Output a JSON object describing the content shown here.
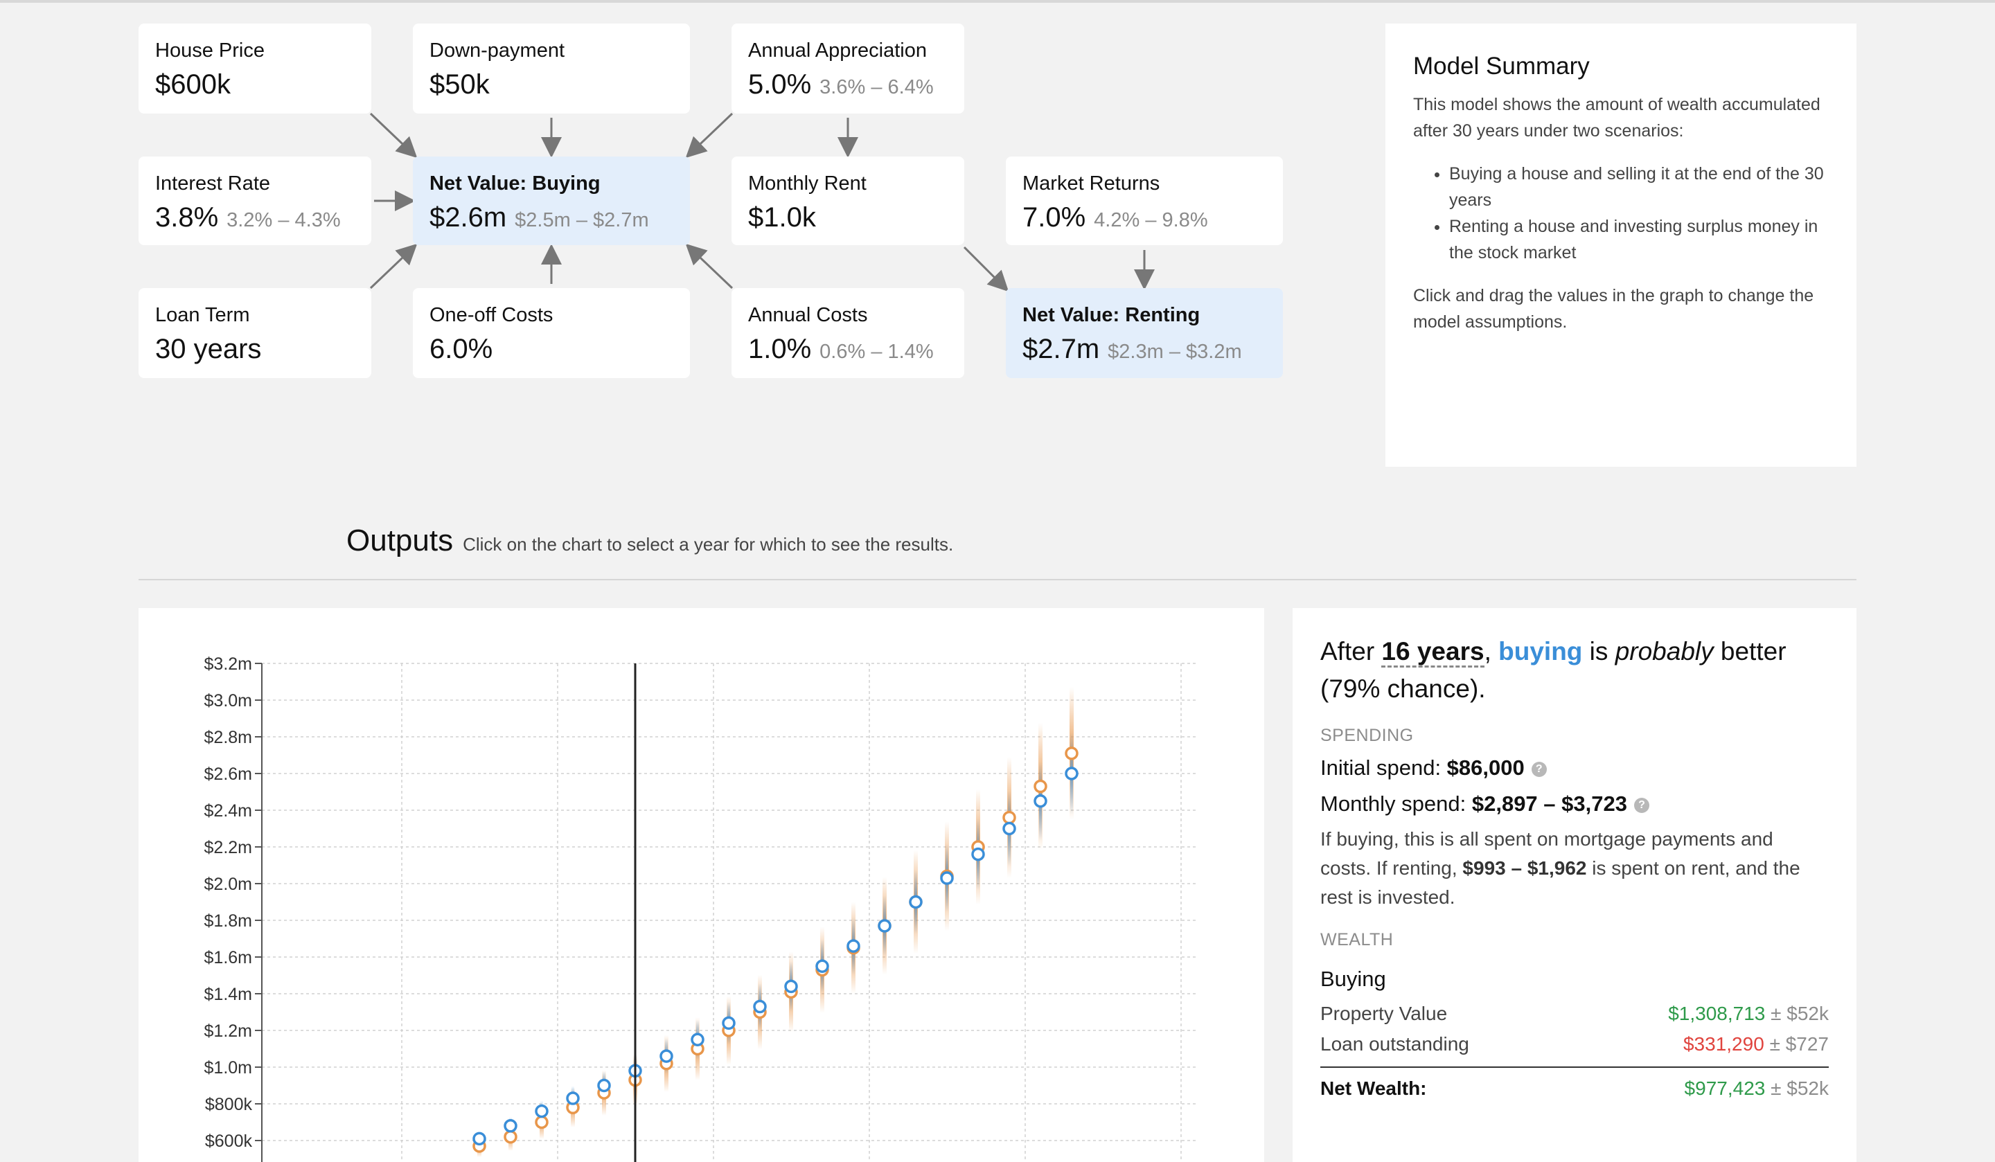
{
  "graph": {
    "house_price": {
      "label": "House Price",
      "value": "$600k",
      "range": ""
    },
    "down_payment": {
      "label": "Down-payment",
      "value": "$50k",
      "range": ""
    },
    "annual_appreciation": {
      "label": "Annual Appreciation",
      "value": "5.0%",
      "range": "3.6% – 6.4%"
    },
    "interest_rate": {
      "label": "Interest Rate",
      "value": "3.8%",
      "range": "3.2% – 4.3%"
    },
    "net_buying": {
      "label": "Net Value: Buying",
      "value": "$2.6m",
      "range": "$2.5m – $2.7m"
    },
    "monthly_rent": {
      "label": "Monthly Rent",
      "value": "$1.0k",
      "range": ""
    },
    "market_returns": {
      "label": "Market Returns",
      "value": "7.0%",
      "range": "4.2% – 9.8%"
    },
    "loan_term": {
      "label": "Loan Term",
      "value": "30 years",
      "range": ""
    },
    "oneoff_costs": {
      "label": "One-off Costs",
      "value": "6.0%",
      "range": ""
    },
    "annual_costs": {
      "label": "Annual Costs",
      "value": "1.0%",
      "range": "0.6% – 1.4%"
    },
    "net_renting": {
      "label": "Net Value: Renting",
      "value": "$2.7m",
      "range": "$2.3m – $3.2m"
    }
  },
  "summary": {
    "title": "Model Summary",
    "intro": "This model shows the amount of wealth accumulated after 30 years under two scenarios:",
    "bullets": [
      "Buying a house and selling it at the end of the 30 years",
      "Renting a house and investing surplus money in the stock market"
    ],
    "outro": "Click and drag the values in the graph to change the model assumptions."
  },
  "outputs": {
    "title": "Outputs",
    "subtitle": "Click on the chart to select a year for which to see the results."
  },
  "results": {
    "h_after": "After ",
    "h_years": "16 years",
    "h_comma": ", ",
    "h_buying": "buying",
    "h_is": " is ",
    "h_probably": "probably",
    "h_better": " better (79% chance).",
    "spending_label": "SPENDING",
    "initial_label": "Initial spend: ",
    "initial_value": "$86,000",
    "monthly_label": "Monthly spend: ",
    "monthly_value": "$2,897 – $3,723",
    "para1": "If buying, this is all spent on mortgage payments and costs. If renting, ",
    "para_rent": "$993 – $1,962",
    "para2": " is spent on rent, and the rest is invested.",
    "wealth_label": "WEALTH",
    "buying_label": "Buying",
    "rows": [
      {
        "label": "Property Value",
        "value": "$1,308,713",
        "pm": "± $52k",
        "kind": "pos"
      },
      {
        "label": "Loan outstanding",
        "value": "$331,290",
        "pm": "± $727",
        "kind": "neg"
      }
    ],
    "net_label": "Net Wealth:",
    "net_value": "$977,423",
    "net_pm": "± $52k"
  },
  "colors": {
    "buying": "#3a8ed8",
    "renting": "#e8964a"
  },
  "chart_data": {
    "type": "scatter",
    "ylim": [
      0,
      3200000
    ],
    "yticks": [
      "$3.2m",
      "$3.0m",
      "$2.8m",
      "$2.6m",
      "$2.4m",
      "$2.2m",
      "$2.0m",
      "$1.8m",
      "$1.6m",
      "$1.4m",
      "$1.2m",
      "$1.0m",
      "$800k",
      "$600k"
    ],
    "ytick_values": [
      3200000,
      3000000,
      2800000,
      2600000,
      2400000,
      2200000,
      2000000,
      1800000,
      1600000,
      1400000,
      1200000,
      1000000,
      800000,
      600000
    ],
    "selected_year": 16,
    "x": [
      11,
      12,
      13,
      14,
      15,
      16,
      17,
      18,
      19,
      20,
      21,
      22,
      23,
      24,
      25,
      26,
      27,
      28,
      29,
      30
    ],
    "series": [
      {
        "name": "Buying",
        "values": [
          610000,
          680000,
          760000,
          830000,
          900000,
          980000,
          1060000,
          1150000,
          1240000,
          1330000,
          1440000,
          1550000,
          1660000,
          1770000,
          1900000,
          2030000,
          2160000,
          2300000,
          2450000,
          2600000
        ]
      },
      {
        "name": "Renting",
        "values": [
          570000,
          620000,
          700000,
          780000,
          860000,
          930000,
          1020000,
          1100000,
          1200000,
          1300000,
          1410000,
          1530000,
          1650000,
          1770000,
          1900000,
          2040000,
          2200000,
          2360000,
          2530000,
          2710000
        ]
      }
    ]
  }
}
